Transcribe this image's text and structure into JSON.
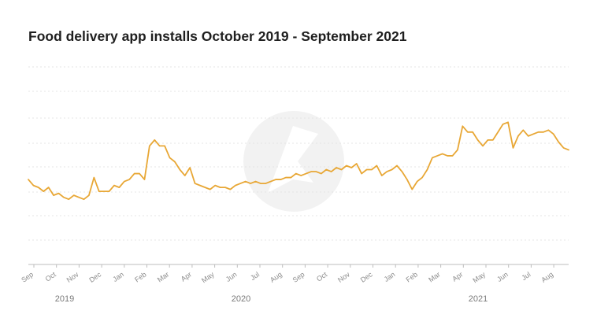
{
  "chart_data": {
    "type": "line",
    "title": "Food delivery app installs October 2019 - September 2021",
    "xlabel": "",
    "ylabel": "",
    "grid": true,
    "legend": "none",
    "colors": {
      "line": "#e8a735",
      "grid": "#e4e4e4",
      "axis": "#bdbdbd"
    },
    "x_month_ticks": [
      "Sep",
      "Oct",
      "Nov",
      "Dec",
      "Jan",
      "Feb",
      "Mar",
      "Apr",
      "May",
      "Jun",
      "Jul",
      "Aug",
      "Sep",
      "Oct",
      "Nov",
      "Dec",
      "Jan",
      "Feb",
      "Mar",
      "Apr",
      "May",
      "Jun",
      "Jul",
      "Aug"
    ],
    "x_year_ticks": [
      "2019",
      "2020",
      "2021"
    ],
    "series": [
      {
        "values": [
          43,
          40,
          39,
          37,
          39,
          35,
          36,
          34,
          33,
          35,
          34,
          33,
          35,
          44,
          37,
          37,
          37,
          40,
          39,
          42,
          43,
          46,
          46,
          43,
          60,
          63,
          60,
          60,
          54,
          52,
          48,
          45,
          49,
          41,
          40,
          39,
          38,
          40,
          39,
          39,
          38,
          40,
          41,
          42,
          41,
          42,
          41,
          41,
          42,
          43,
          43,
          44,
          44,
          46,
          45,
          46,
          47,
          47,
          46,
          48,
          47,
          49,
          48,
          50,
          49,
          51,
          46,
          48,
          48,
          50,
          45,
          47,
          48,
          50,
          47,
          43,
          38,
          42,
          44,
          48,
          54,
          55,
          56,
          55,
          55,
          58,
          70,
          67,
          67,
          63,
          60,
          63,
          63,
          67,
          71,
          72,
          59,
          65,
          68,
          65,
          66,
          67,
          67,
          68,
          66,
          62,
          59,
          58
        ]
      }
    ],
    "ylim": [
      0,
      100
    ]
  },
  "watermark": {
    "icon": "brand-logo-icon"
  }
}
